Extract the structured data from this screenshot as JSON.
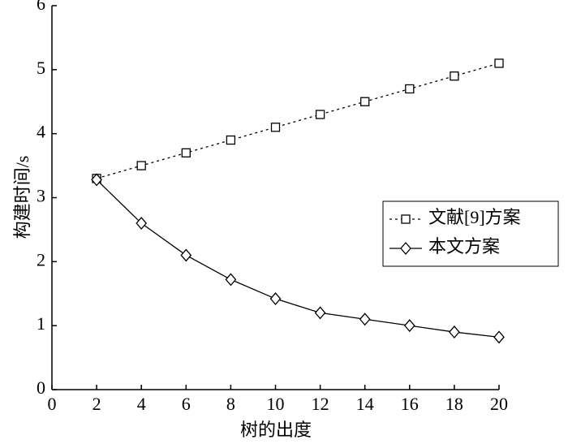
{
  "chart_data": {
    "type": "line",
    "xlabel": "树的出度",
    "ylabel": "构建时间/s",
    "x": [
      2,
      4,
      6,
      8,
      10,
      12,
      14,
      16,
      18,
      20
    ],
    "series": [
      {
        "name": "文献[9]方案",
        "color": "#000000",
        "dash": "dotted",
        "marker": "square",
        "values": [
          3.3,
          3.5,
          3.7,
          3.9,
          4.1,
          4.3,
          4.5,
          4.7,
          4.9,
          5.1
        ]
      },
      {
        "name": "本文方案",
        "color": "#000000",
        "dash": "solid",
        "marker": "diamond",
        "values": [
          3.28,
          2.6,
          2.1,
          1.72,
          1.42,
          1.2,
          1.1,
          1.0,
          0.9,
          0.82
        ]
      }
    ],
    "xlim": [
      0,
      20
    ],
    "ylim": [
      0,
      6
    ],
    "xticks": [
      0,
      2,
      4,
      6,
      8,
      10,
      12,
      14,
      16,
      18,
      20
    ],
    "yticks": [
      0,
      1,
      2,
      3,
      4,
      5,
      6
    ],
    "grid": false,
    "legend": "right"
  }
}
